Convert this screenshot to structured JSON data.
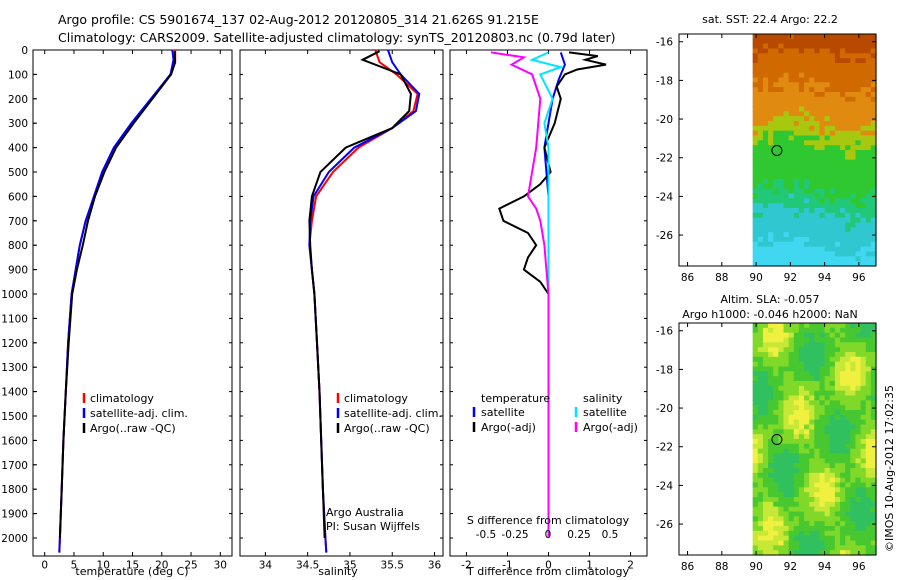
{
  "header": {
    "line1": "Argo profile: CS 5901674_137 02-Aug-2012 20120805_314 21.626S 91.215E",
    "line2": "Climatology: CARS2009. Satellite-adjusted climatology: synTS_20120803.nc (0.79d later)"
  },
  "chart_data": [
    {
      "type": "line",
      "id": "temperature",
      "xlabel": "temperature (deg C)",
      "ylabel": "",
      "xlim": [
        -2,
        32
      ],
      "ylim": [
        2060,
        0
      ],
      "xticks": [
        "0",
        "5",
        "10",
        "15",
        "20",
        "25",
        "30"
      ],
      "xtick_values": [
        0,
        5,
        10,
        15,
        20,
        25,
        30
      ],
      "yticks": [
        "0",
        "100",
        "200",
        "300",
        "400",
        "500",
        "600",
        "700",
        "800",
        "900",
        "1000",
        "1100",
        "1200",
        "1300",
        "1400",
        "1500",
        "1600",
        "1700",
        "1800",
        "1900",
        "2000"
      ],
      "ytick_values": [
        0,
        100,
        200,
        300,
        400,
        500,
        600,
        700,
        800,
        900,
        1000,
        1100,
        1200,
        1300,
        1400,
        1500,
        1600,
        1700,
        1800,
        1900,
        2000
      ],
      "legend": [
        "climatology",
        "satellite-adj. clim.",
        "Argo(..raw -QC)"
      ],
      "series": [
        {
          "name": "climatology",
          "color": "#ff0000",
          "x": [
            22.3,
            22.3,
            21.5,
            15,
            12,
            10,
            8.5,
            7,
            6,
            5.3,
            4.6,
            4,
            3.6,
            3.2,
            2.9,
            2.6,
            2.5
          ],
          "y": [
            0,
            40,
            100,
            300,
            400,
            500,
            600,
            700,
            800,
            900,
            1000,
            1200,
            1400,
            1600,
            1800,
            2000,
            2060
          ]
        },
        {
          "name": "satellite-adj. clim.",
          "color": "#0000ff",
          "x": [
            21.8,
            22,
            21.5,
            14.8,
            11.8,
            9.8,
            8.4,
            7,
            6,
            5.3,
            4.6,
            4,
            3.6,
            3.2,
            2.9,
            2.6,
            2.5
          ],
          "y": [
            0,
            40,
            100,
            300,
            400,
            500,
            600,
            700,
            800,
            900,
            1000,
            1200,
            1400,
            1600,
            1800,
            2000,
            2060
          ]
        },
        {
          "name": "Argo(..raw -QC)",
          "color": "#000000",
          "x": [
            22.2,
            22.3,
            21.6,
            15.2,
            12.2,
            10.2,
            8.6,
            7.4,
            6.5,
            5.5,
            4.7,
            4.1,
            3.6,
            3.2,
            2.9,
            2.6
          ],
          "y": [
            5,
            50,
            100,
            300,
            400,
            500,
            600,
            700,
            800,
            900,
            1000,
            1200,
            1400,
            1600,
            1800,
            2000
          ]
        }
      ]
    },
    {
      "type": "line",
      "id": "salinity",
      "xlabel": "salinity",
      "xlim": [
        33.7,
        36.1
      ],
      "ylim": [
        2060,
        0
      ],
      "xticks": [
        "34",
        "34.5",
        "35",
        "35.5",
        "36"
      ],
      "xtick_values": [
        34,
        34.5,
        35,
        35.5,
        36
      ],
      "legend": [
        "climatology",
        "satellite-adj. clim.",
        "Argo(..raw -QC)"
      ],
      "annotation": [
        "Argo Australia",
        "PI: Susan Wijffels"
      ],
      "series": [
        {
          "name": "climatology",
          "color": "#ff0000",
          "x": [
            35.3,
            35.35,
            35.55,
            35.8,
            35.75,
            35.5,
            35.1,
            34.8,
            34.6,
            34.55,
            34.52,
            34.55,
            34.58,
            34.61,
            34.64,
            34.66,
            34.68,
            34.71,
            34.72
          ],
          "y": [
            0,
            50,
            100,
            180,
            250,
            320,
            400,
            500,
            600,
            700,
            800,
            900,
            1000,
            1200,
            1400,
            1600,
            1800,
            2000,
            2060
          ]
        },
        {
          "name": "satellite-adj. clim.",
          "color": "#0000ff",
          "x": [
            35.45,
            35.5,
            35.6,
            35.82,
            35.78,
            35.5,
            35.05,
            34.75,
            34.57,
            34.53,
            34.52,
            34.55,
            34.58,
            34.61,
            34.64,
            34.66,
            34.68,
            34.71,
            34.72
          ],
          "y": [
            0,
            50,
            100,
            180,
            250,
            320,
            400,
            500,
            600,
            700,
            800,
            900,
            1000,
            1200,
            1400,
            1600,
            1800,
            2000,
            2060
          ]
        },
        {
          "name": "Argo(..raw -QC)",
          "color": "#000000",
          "x": [
            35.35,
            35.15,
            35.6,
            35.72,
            35.7,
            35.5,
            34.95,
            34.65,
            34.55,
            34.52,
            34.53,
            34.55,
            34.58,
            34.61,
            34.64,
            34.66,
            34.68,
            34.7
          ],
          "y": [
            5,
            40,
            100,
            180,
            250,
            320,
            400,
            500,
            600,
            700,
            800,
            900,
            1000,
            1200,
            1400,
            1600,
            1800,
            2000
          ]
        }
      ]
    },
    {
      "type": "line",
      "id": "difference",
      "xlabel": "T difference from climatology",
      "xlabel_top": "S difference from climatology",
      "xlim": [
        -2.4,
        2.4
      ],
      "ylim": [
        2060,
        0
      ],
      "xticks": [
        "-2",
        "-1",
        "0",
        "1",
        "2"
      ],
      "xtick_values": [
        -2,
        -1,
        0,
        1,
        2
      ],
      "s_ticks": [
        "-0.5",
        "-0.25",
        "0",
        "0.25",
        "0.5"
      ],
      "legend_headers": [
        "temperature",
        "salinity"
      ],
      "legend": [
        "satellite",
        "Argo(-adj)",
        "satellite",
        "Argo(-adj)"
      ],
      "series": [
        {
          "name": "temperature satellite",
          "color": "#0000ff",
          "x": [
            0.3,
            0.4,
            0.25,
            0.1,
            0,
            -0.1,
            -0.05,
            0,
            0,
            0,
            0,
            0,
            0,
            0,
            0
          ],
          "y": [
            10,
            60,
            120,
            200,
            300,
            400,
            500,
            600,
            700,
            800,
            1000,
            1200,
            1500,
            1800,
            2000
          ]
        },
        {
          "name": "temperature Argo(-adj)",
          "color": "#000000",
          "x": [
            0.5,
            1.2,
            0.9,
            1.4,
            0.7,
            0.4,
            0.2,
            0.3,
            0.15,
            -0.1,
            0.05,
            -0.2,
            -0.6,
            -1.2,
            -1.1,
            -0.5,
            -0.3,
            -0.5,
            -0.6,
            -0.2,
            0,
            0,
            0
          ],
          "y": [
            10,
            25,
            40,
            60,
            80,
            100,
            150,
            200,
            300,
            400,
            500,
            550,
            600,
            650,
            700,
            750,
            800,
            850,
            900,
            950,
            1000,
            1500,
            2000
          ]
        },
        {
          "name": "salinity satellite",
          "color": "#00e5ff",
          "x": [
            0,
            -0.4,
            0.3,
            -0.2,
            0.1,
            -0.1,
            0,
            0,
            0,
            0,
            0,
            0,
            0,
            0
          ],
          "y": [
            10,
            40,
            70,
            100,
            200,
            300,
            400,
            500,
            700,
            900,
            1200,
            1500,
            1800,
            2000
          ]
        },
        {
          "name": "salinity Argo(-adj)",
          "color": "#ff00ff",
          "x": [
            -1.4,
            -0.6,
            -0.9,
            -0.4,
            -0.2,
            -0.3,
            -0.4,
            -0.5,
            -0.3,
            -0.2,
            -0.1,
            -0.05,
            0,
            0,
            0
          ],
          "y": [
            10,
            30,
            60,
            100,
            200,
            400,
            500,
            600,
            650,
            700,
            800,
            900,
            1000,
            1500,
            2000
          ]
        }
      ]
    }
  ],
  "maps": {
    "sst_title": "sat. SST: 22.4 Argo: 22.2",
    "sla_title1": "Altim. SLA: -0.057",
    "sla_title2": "Argo h1000: -0.046 h2000: NaN",
    "yticks": [
      "-16",
      "-18",
      "-20",
      "-22",
      "-24",
      "-26"
    ],
    "ytick_values": [
      -16,
      -18,
      -20,
      -22,
      -24,
      -26
    ],
    "xticks": [
      "86",
      "88",
      "90",
      "92",
      "94",
      "96"
    ],
    "xtick_values": [
      86,
      88,
      90,
      92,
      94,
      96
    ],
    "lon_range": [
      85.5,
      97
    ],
    "lat_range": [
      -27.6,
      -15.6
    ],
    "argo_lon": 91.215,
    "argo_lat": -21.626
  },
  "footer": {
    "stamp": "©IMOS 10-Aug-2012 17:02:35"
  }
}
